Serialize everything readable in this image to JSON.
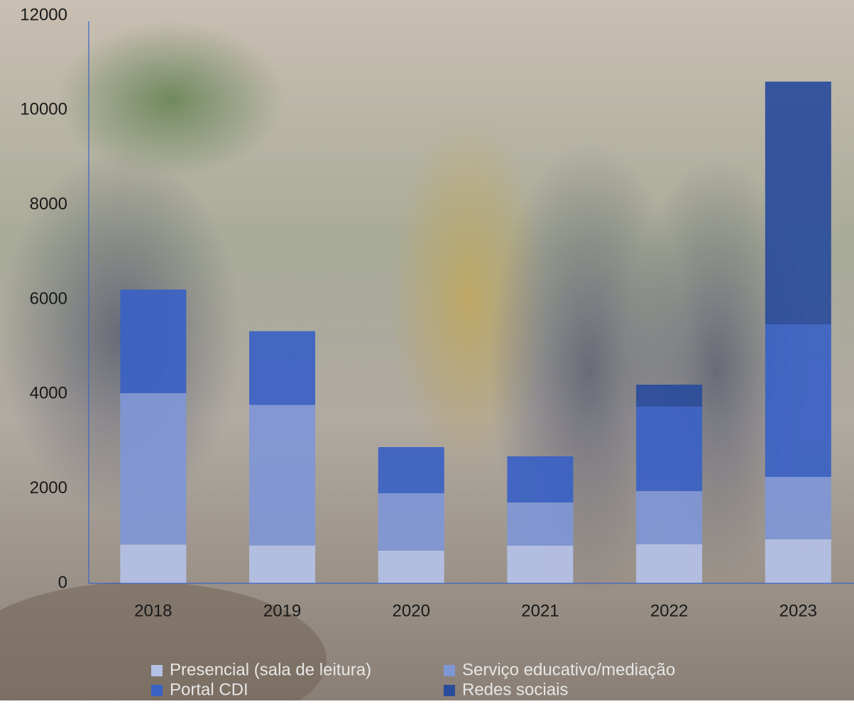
{
  "chart_data": {
    "type": "stacked-bar",
    "categories": [
      "2018",
      "2019",
      "2020",
      "2021",
      "2022",
      "2023"
    ],
    "series": [
      {
        "name": "Presencial (sala de leitura)",
        "color": "#b4c1e6",
        "values": [
          820,
          800,
          690,
          795,
          825,
          930
        ]
      },
      {
        "name": "Serviço educativo/mediação",
        "color": "#7f96d6",
        "values": [
          3200,
          2970,
          1215,
          915,
          1125,
          1320
        ]
      },
      {
        "name": "Portal CDI",
        "color": "#3a62c4",
        "values": [
          2190,
          1560,
          975,
          975,
          1785,
          3225
        ]
      },
      {
        "name": "Redes sociais",
        "color": "#2a4c9c",
        "values": [
          0,
          0,
          0,
          0,
          465,
          5130
        ]
      }
    ],
    "ylim": [
      0,
      12000
    ],
    "yticks": [
      0,
      2000,
      4000,
      6000,
      8000,
      10000,
      12000
    ]
  }
}
